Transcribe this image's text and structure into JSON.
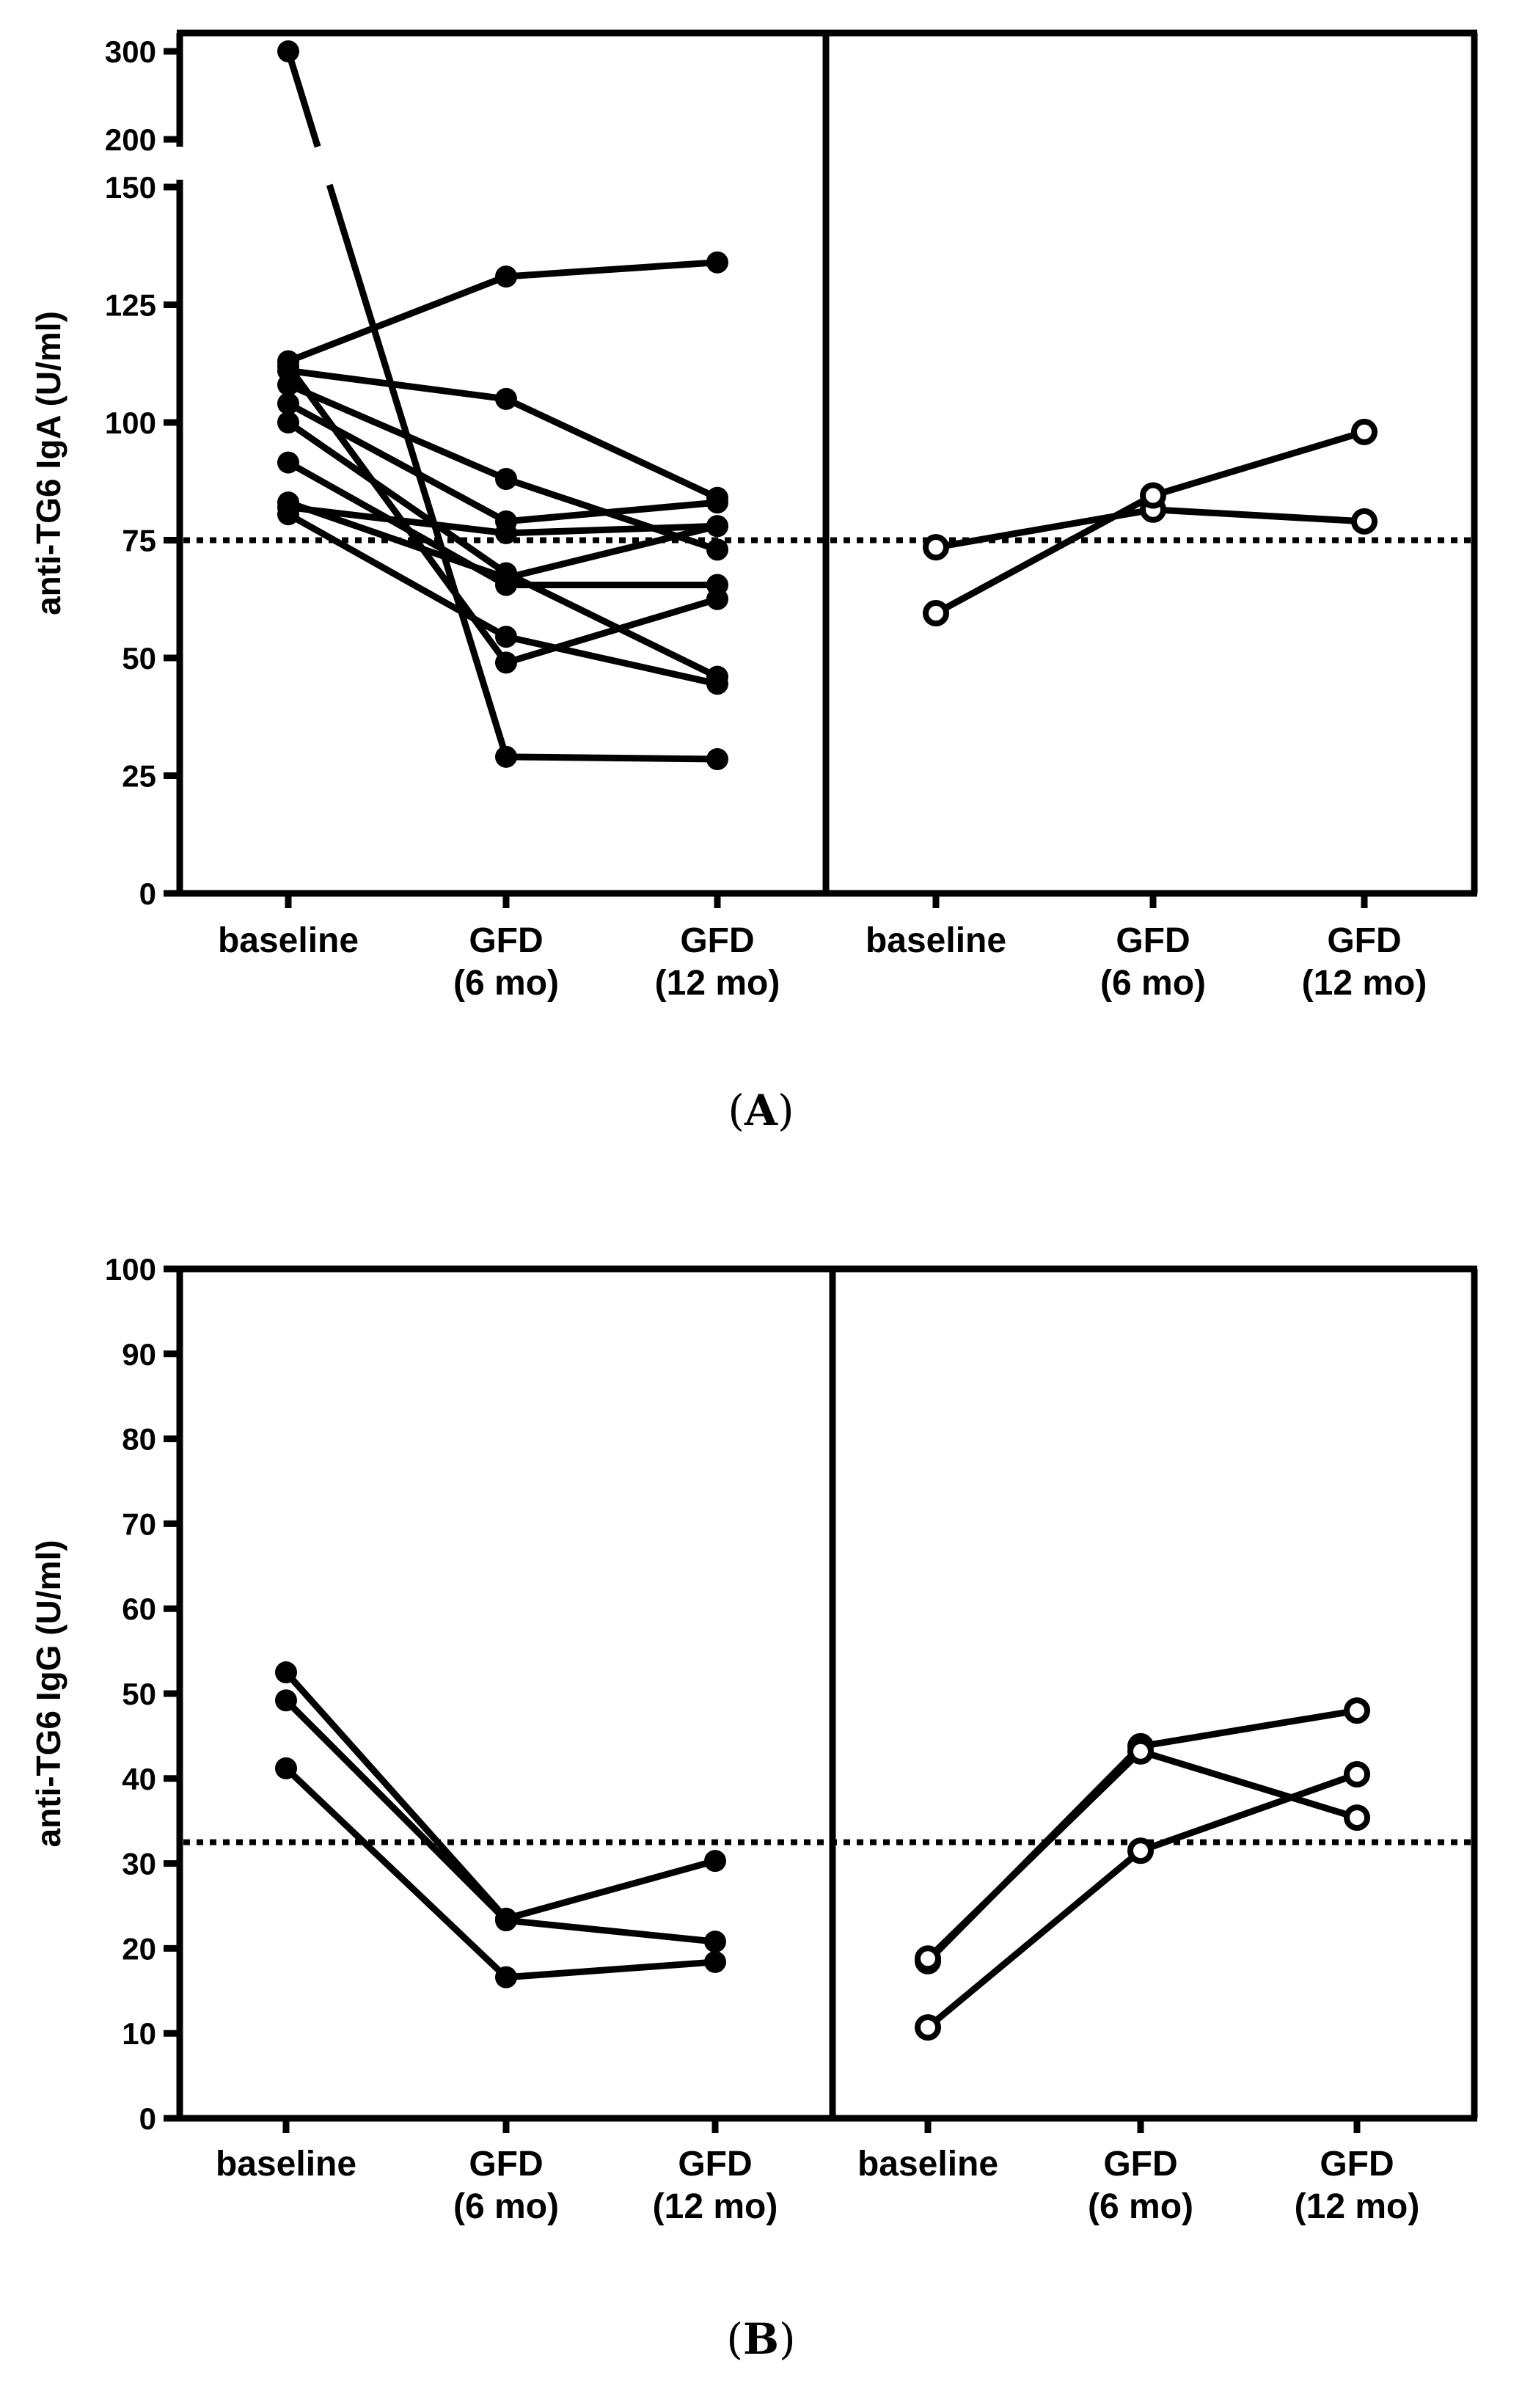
{
  "figure": {
    "panel_labels": [
      "A",
      "B"
    ]
  },
  "chart_data": [
    {
      "type": "line",
      "panel": "A",
      "title": "",
      "ylabel": "anti-TG6 IgA (U/ml)",
      "ylim": [
        0,
        150
      ],
      "axis_break": {
        "lower_max": 150,
        "upper_ticks": [
          200,
          300
        ]
      },
      "yticks": [
        0,
        25,
        50,
        75,
        100,
        125,
        150
      ],
      "threshold": 75,
      "groups": [
        {
          "name": "left",
          "categories": [
            "baseline",
            "GFD\n(6 mo)",
            "GFD\n(12 mo)"
          ],
          "marker": "filled",
          "series": [
            {
              "values": [
                300,
                29,
                28.5
              ]
            },
            {
              "values": [
                113,
                131,
                134
              ]
            },
            {
              "values": [
                111,
                105,
                84
              ]
            },
            {
              "values": [
                108,
                88,
                73
              ]
            },
            {
              "values": [
                104,
                79,
                83
              ]
            },
            {
              "values": [
                100,
                68,
                46
              ]
            },
            {
              "values": [
                91.5,
                65.5,
                65.5
              ]
            },
            {
              "values": [
                83,
                67,
                78
              ]
            },
            {
              "values": [
                82,
                76.5,
                78
              ]
            },
            {
              "values": [
                80.5,
                54.5,
                44.5
              ]
            },
            {
              "values": [
                112,
                49,
                62.5
              ]
            }
          ]
        },
        {
          "name": "right",
          "categories": [
            "baseline",
            "GFD\n(6 mo)",
            "GFD\n(12 mo)"
          ],
          "marker": "open",
          "series": [
            {
              "values": [
                73.5,
                81.5,
                79
              ]
            },
            {
              "values": [
                59.5,
                84.5,
                98
              ]
            }
          ]
        }
      ]
    },
    {
      "type": "line",
      "panel": "B",
      "title": "",
      "ylabel": "anti-TG6 IgG (U/ml)",
      "ylim": [
        0,
        100
      ],
      "yticks": [
        0,
        10,
        20,
        30,
        40,
        50,
        60,
        70,
        80,
        90,
        100
      ],
      "threshold": 32.5,
      "groups": [
        {
          "name": "left",
          "categories": [
            "baseline",
            "GFD\n(6 mo)",
            "GFD\n(12 mo)"
          ],
          "marker": "filled",
          "series": [
            {
              "values": [
                52.5,
                23.5,
                30.3
              ]
            },
            {
              "values": [
                49.2,
                23.3,
                20.8
              ]
            },
            {
              "values": [
                41.2,
                16.6,
                18.4
              ]
            }
          ]
        },
        {
          "name": "right",
          "categories": [
            "baseline",
            "GFD\n(6 mo)",
            "GFD\n(12 mo)"
          ],
          "marker": "open",
          "series": [
            {
              "values": [
                18.5,
                43.8,
                48
              ]
            },
            {
              "values": [
                18.8,
                43.2,
                35.4
              ]
            },
            {
              "values": [
                10.7,
                31.5,
                40.5
              ]
            }
          ]
        }
      ]
    }
  ]
}
